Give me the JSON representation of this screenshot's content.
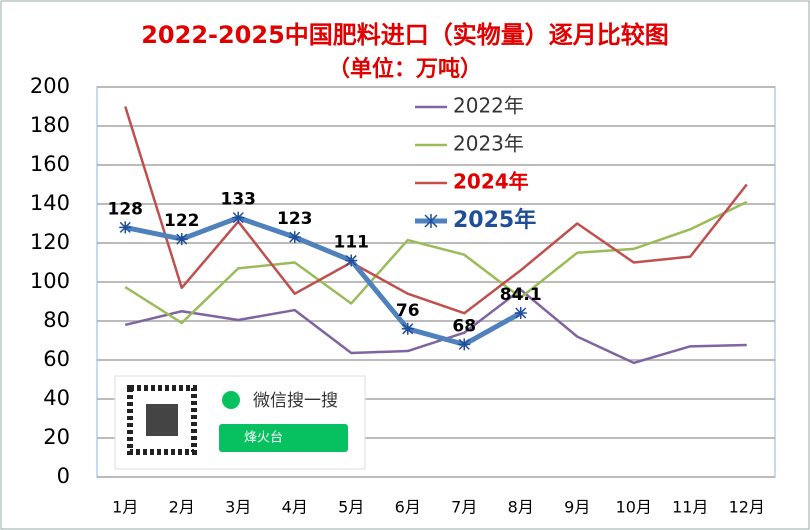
{
  "chart_data": {
    "type": "line",
    "title": "2022-2025中国肥料进口（实物量）逐月比较图",
    "subtitle": "（单位：万吨）",
    "categories": [
      "1月",
      "2月",
      "3月",
      "4月",
      "5月",
      "6月",
      "7月",
      "8月",
      "9月",
      "10月",
      "11月",
      "12月"
    ],
    "series": [
      {
        "name": "2022年",
        "color": "#8064a2",
        "values": [
          78,
          85,
          80.5,
          85.6,
          63.6,
          64.6,
          74,
          96,
          72,
          58.5,
          67,
          67.7
        ]
      },
      {
        "name": "2023年",
        "color": "#9bbb59",
        "values": [
          97.4,
          79,
          107,
          110,
          89,
          121.5,
          114,
          92,
          115,
          117,
          127,
          141
        ]
      },
      {
        "name": "2024年",
        "color": "#c0504d",
        "values": [
          190,
          97,
          131,
          94,
          110,
          94,
          84,
          106,
          130,
          110,
          113,
          150
        ]
      },
      {
        "name": "2025年",
        "color": "#4f81bd",
        "values": [
          128,
          122,
          133,
          123,
          111,
          76,
          68,
          84.1,
          null,
          null,
          null,
          null
        ]
      }
    ],
    "ylim": [
      0,
      200
    ],
    "yticks": [
      0,
      20,
      40,
      60,
      80,
      100,
      120,
      140,
      160,
      180,
      200
    ],
    "grid": true,
    "watermark": {
      "text": "微信搜一搜",
      "button": "烽火台"
    }
  }
}
